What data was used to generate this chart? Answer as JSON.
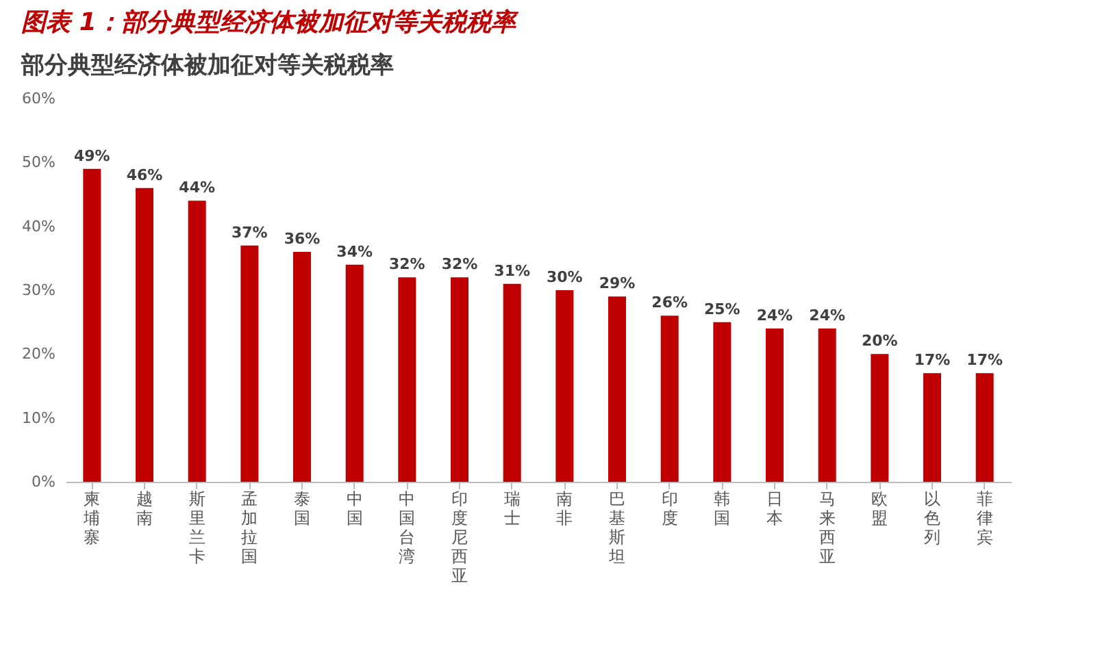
{
  "chart_data": {
    "type": "bar",
    "title": "图表 1：部分典型经济体被加征对等关税税率",
    "subtitle": "部分典型经济体被加征对等关税税率",
    "categories": [
      "柬埔寨",
      "越南",
      "斯里兰卡",
      "孟加拉国",
      "泰国",
      "中国",
      "中国台湾",
      "印度尼西亚",
      "瑞士",
      "南非",
      "巴基斯坦",
      "印度",
      "韩国",
      "日本",
      "马来西亚",
      "欧盟",
      "以色列",
      "菲律宾"
    ],
    "values": [
      49,
      46,
      44,
      37,
      36,
      34,
      32,
      32,
      31,
      30,
      29,
      26,
      25,
      24,
      24,
      20,
      17,
      17
    ],
    "value_labels": [
      "49%",
      "46%",
      "44%",
      "37%",
      "36%",
      "34%",
      "32%",
      "32%",
      "31%",
      "30%",
      "29%",
      "26%",
      "25%",
      "24%",
      "24%",
      "20%",
      "17%",
      "17%"
    ],
    "color": "#c00000",
    "ylim": [
      0,
      60
    ],
    "yticks": [
      {
        "value": 0,
        "label": "0%"
      },
      {
        "value": 10,
        "label": "10%"
      },
      {
        "value": 20,
        "label": "20%"
      },
      {
        "value": 30,
        "label": "30%"
      },
      {
        "value": 40,
        "label": "40%"
      },
      {
        "value": 50,
        "label": "50%"
      },
      {
        "value": 60,
        "label": "60%"
      }
    ],
    "grid": false
  }
}
